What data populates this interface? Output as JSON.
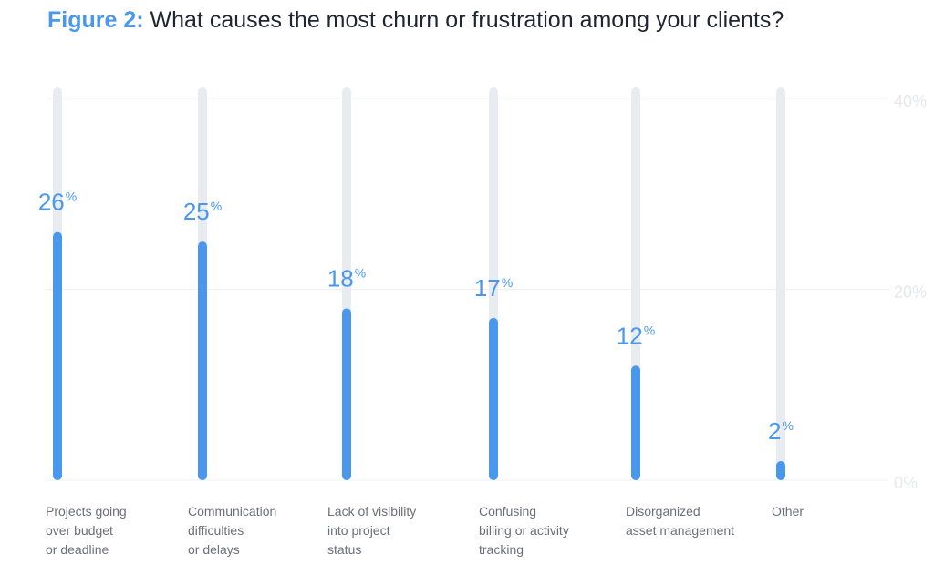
{
  "figure": {
    "label": "Figure 2:",
    "question": "What causes the most churn or frustration among your clients?"
  },
  "chart_data": {
    "type": "bar",
    "title": "What causes the most churn or frustration among your clients?",
    "categories": [
      [
        "Projects going",
        "over budget",
        "or deadline"
      ],
      [
        "Communication",
        "difficulties",
        "or delays"
      ],
      [
        "Lack of visibility",
        "into project",
        "status"
      ],
      [
        "Confusing",
        "billing or activity",
        "tracking"
      ],
      [
        "Disorganized",
        "asset management"
      ],
      [
        "Other"
      ]
    ],
    "values": [
      26,
      25,
      18,
      17,
      12,
      2
    ],
    "value_suffix": "%",
    "ylim": [
      0,
      40
    ],
    "yticks": [
      0,
      20,
      40
    ],
    "ytick_labels": [
      "0%",
      "20%",
      "40%"
    ],
    "grid": true,
    "colors": {
      "bar": "#4a98ee",
      "track": "#e8ebf0",
      "grid": "#eef0f3",
      "title_accent": "#4a98ee",
      "text": "#1f2533"
    }
  }
}
